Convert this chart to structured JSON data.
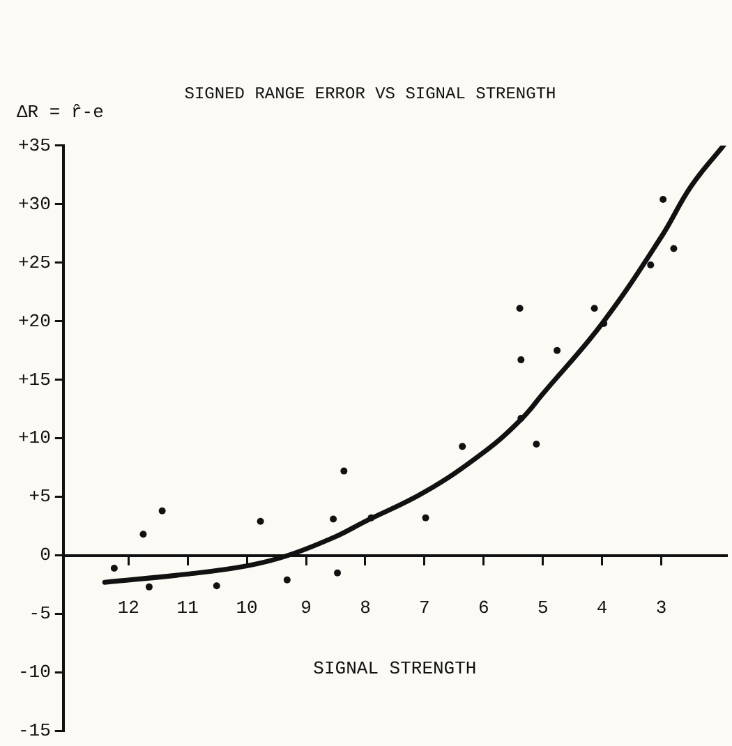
{
  "chart_data": {
    "type": "scatter",
    "title": "SIGNED RANGE ERROR VS SIGNAL STRENGTH",
    "xlabel": "SIGNAL STRENGTH",
    "ylabel": "ΔR = r̂-e",
    "xlim": [
      13.1,
      1.9
    ],
    "xticks": [
      12,
      11,
      10,
      9,
      8,
      7,
      6,
      5,
      4,
      3
    ],
    "ylim": [
      -15,
      35
    ],
    "yticks": [
      {
        "value": 35,
        "label": "+35"
      },
      {
        "value": 30,
        "label": "+30"
      },
      {
        "value": 25,
        "label": "+25"
      },
      {
        "value": 20,
        "label": "+20"
      },
      {
        "value": 15,
        "label": "+15"
      },
      {
        "value": 10,
        "label": "+10"
      },
      {
        "value": 5,
        "label": "+5"
      },
      0,
      -5,
      -10,
      -15
    ],
    "grid": false,
    "legend": false,
    "marker": "circle",
    "series": [
      {
        "color": "#111111",
        "x": [
          2.97,
          2.79,
          3.18,
          4.13,
          3.97,
          4.76,
          5.39,
          5.37,
          5.37,
          5.11,
          6.36,
          6.98,
          7.9,
          8.36,
          8.54,
          8.47,
          9.32,
          9.77,
          10.51,
          11.43,
          11.75,
          11.65,
          12.24
        ],
        "values": [
          30.4,
          26.2,
          24.8,
          21.1,
          19.8,
          17.5,
          21.1,
          16.7,
          11.7,
          9.5,
          9.3,
          3.2,
          3.2,
          7.2,
          3.1,
          -1.5,
          -2.1,
          2.9,
          -2.6,
          3.8,
          1.8,
          -2.7,
          -1.1
        ]
      },
      {
        "type": "line",
        "color": "#111111",
        "marker": "none",
        "x": [
          12.4,
          11,
          10,
          9.3,
          8.5,
          8,
          7,
          6,
          5.37,
          5,
          4,
          3,
          2.5,
          1.95
        ],
        "values": [
          -2.3,
          -1.6,
          -0.9,
          0,
          1.6,
          2.9,
          5.4,
          8.8,
          11.6,
          13.8,
          19.8,
          27.2,
          31.5,
          35
        ]
      }
    ]
  }
}
